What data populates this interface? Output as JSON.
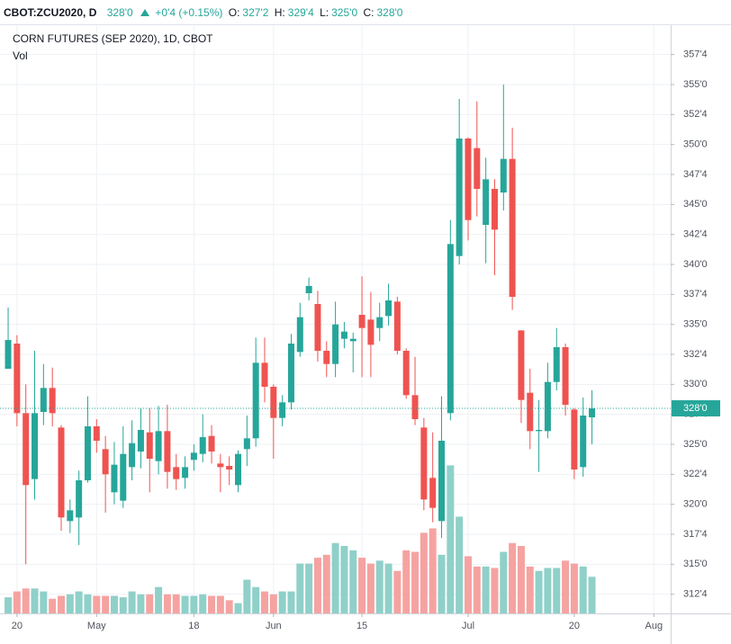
{
  "header": {
    "symbol": "CBOT:ZCU2020, D",
    "last": "328'0",
    "change": "+0'4 (+0.15%)",
    "o_label": "O:",
    "o": "327'2",
    "h_label": "H:",
    "h": "329'4",
    "l_label": "L:",
    "l": "325'0",
    "c_label": "C:",
    "c": "328'0"
  },
  "chart_data": {
    "type": "candlestick",
    "title": "CORN FUTURES (SEP 2020), 1D, CBOT",
    "subtitle": "Vol",
    "up_color": "#26a69a",
    "down_color": "#ef5350",
    "volume_up_color": "#8fd0c9",
    "volume_down_color": "#f5a3a1",
    "grid": true,
    "x": [
      0,
      1,
      2,
      3,
      4,
      5,
      6,
      7,
      8,
      9,
      10,
      11,
      12,
      13,
      14,
      15,
      16,
      17,
      18,
      19,
      20,
      21,
      22,
      23,
      24,
      25,
      26,
      27,
      28,
      29,
      30,
      31,
      32,
      33,
      34,
      35,
      36,
      37,
      38,
      39,
      40,
      41,
      42,
      43,
      44,
      45,
      46,
      47,
      48,
      49,
      50,
      51,
      52,
      53,
      54,
      55,
      56,
      57,
      58,
      59,
      60,
      61,
      62,
      63,
      64,
      65,
      66
    ],
    "open": [
      331.3,
      333.4,
      327.6,
      322.1,
      327.7,
      329.7,
      326.4,
      318.6,
      318.9,
      322.0,
      326.5,
      324.6,
      321.0,
      320.3,
      323.1,
      324.4,
      326.0,
      323.6,
      326.1,
      323.1,
      322.2,
      323.7,
      324.2,
      325.7,
      323.4,
      323.2,
      321.6,
      324.6,
      325.5,
      331.8,
      329.8,
      327.2,
      328.5,
      332.7,
      337.6,
      336.7,
      332.8,
      331.7,
      333.8,
      333.6,
      335.8,
      335.4,
      334.7,
      335.7,
      336.9,
      332.8,
      329.1,
      326.4,
      322.2,
      318.6,
      327.6,
      340.7,
      350.5,
      349.7,
      343.3,
      346.3,
      346.0,
      348.8,
      334.5,
      329.3,
      326.1,
      326.1,
      330.2,
      333.1,
      327.9,
      323.1,
      327.25
    ],
    "high": [
      336.4,
      334.1,
      330.0,
      332.8,
      331.7,
      331.4,
      326.6,
      320.4,
      322.8,
      329.0,
      327.1,
      325.7,
      325.2,
      326.5,
      327.0,
      328.0,
      328.0,
      328.2,
      328.3,
      324.2,
      324.0,
      325.0,
      327.5,
      326.6,
      324.2,
      324.0,
      324.5,
      327.4,
      333.9,
      333.9,
      330.0,
      329.1,
      334.2,
      336.8,
      338.9,
      337.8,
      333.6,
      336.9,
      335.2,
      334.3,
      339.0,
      337.7,
      336.8,
      338.4,
      337.3,
      333.0,
      332.3,
      327.2,
      326.0,
      329.0,
      343.7,
      353.8,
      350.6,
      353.6,
      348.9,
      347.1,
      355.0,
      351.4,
      334.5,
      331.3,
      328.7,
      331.8,
      334.7,
      333.4,
      328.0,
      328.9,
      329.5
    ],
    "low": [
      331.3,
      326.5,
      315.0,
      320.4,
      326.6,
      326.5,
      317.8,
      317.6,
      316.6,
      321.8,
      324.3,
      319.3,
      320.0,
      319.7,
      322.0,
      323.0,
      321.0,
      322.5,
      321.3,
      321.2,
      321.3,
      322.8,
      323.5,
      323.4,
      321.0,
      321.6,
      321.0,
      323.2,
      324.8,
      328.5,
      323.8,
      326.5,
      327.9,
      332.3,
      337.0,
      331.9,
      330.6,
      330.6,
      333.0,
      331.0,
      330.6,
      330.6,
      333.6,
      334.9,
      332.5,
      328.8,
      326.6,
      319.5,
      318.5,
      317.2,
      327.0,
      340.0,
      342.0,
      344.0,
      340.1,
      339.1,
      344.5,
      336.2,
      326.8,
      324.6,
      322.7,
      325.5,
      329.5,
      327.4,
      322.1,
      322.3,
      325.0
    ],
    "close": [
      333.7,
      327.6,
      321.6,
      327.6,
      329.7,
      327.6,
      318.9,
      319.5,
      322.0,
      326.5,
      325.3,
      322.5,
      323.3,
      324.2,
      325.1,
      326.2,
      323.8,
      326.1,
      322.7,
      322.1,
      323.1,
      324.3,
      325.6,
      324.4,
      323.1,
      322.9,
      324.2,
      325.5,
      331.8,
      329.8,
      327.2,
      328.5,
      333.4,
      335.6,
      338.2,
      332.8,
      331.7,
      335.0,
      334.4,
      333.8,
      334.7,
      333.3,
      335.6,
      337.0,
      332.8,
      329.1,
      327.1,
      320.4,
      319.7,
      325.3,
      341.7,
      350.5,
      343.7,
      346.3,
      347.1,
      342.9,
      348.8,
      337.3,
      328.7,
      326.1,
      326.2,
      330.2,
      333.1,
      328.3,
      322.9,
      327.4,
      328.0
    ],
    "volume": [
      11,
      15,
      17,
      17,
      15,
      10,
      12,
      13,
      15,
      13,
      12,
      12,
      12,
      11,
      15,
      13,
      13,
      18,
      13,
      13,
      12,
      12,
      13,
      12,
      12,
      9,
      7,
      23,
      18,
      15,
      13,
      15,
      15,
      34,
      34,
      38,
      40,
      48,
      46,
      43,
      38,
      34,
      36,
      34,
      29,
      43,
      42,
      55,
      58,
      40,
      101,
      66,
      39,
      32,
      32,
      31,
      42,
      48,
      46,
      32,
      29,
      31,
      31,
      36,
      34,
      32,
      25
    ],
    "volume_ylim": [
      0,
      400
    ],
    "xlim": [
      -0.92,
      74.9
    ],
    "xticks": [
      {
        "value": 1,
        "label": "20"
      },
      {
        "value": 10,
        "label": "May"
      },
      {
        "value": 21,
        "label": "18"
      },
      {
        "value": 30,
        "label": "Jun"
      },
      {
        "value": 40,
        "label": "15"
      },
      {
        "value": 52,
        "label": "Jul"
      },
      {
        "value": 64,
        "label": "20"
      },
      {
        "value": 73,
        "label": "Aug"
      }
    ],
    "ylim": [
      310.9,
      359.8
    ],
    "yticks": [
      {
        "value": 312.5,
        "label": "312'4"
      },
      {
        "value": 315,
        "label": "315'0"
      },
      {
        "value": 317.5,
        "label": "317'4"
      },
      {
        "value": 320,
        "label": "320'0"
      },
      {
        "value": 322.5,
        "label": "322'4"
      },
      {
        "value": 325,
        "label": "325'0"
      },
      {
        "value": 327.5,
        "label": "327'4"
      },
      {
        "value": 330,
        "label": "330'0"
      },
      {
        "value": 332.5,
        "label": "332'4"
      },
      {
        "value": 335,
        "label": "335'0"
      },
      {
        "value": 337.5,
        "label": "337'4"
      },
      {
        "value": 340,
        "label": "340'0"
      },
      {
        "value": 342.5,
        "label": "342'4"
      },
      {
        "value": 345,
        "label": "345'0"
      },
      {
        "value": 347.5,
        "label": "347'4"
      },
      {
        "value": 350,
        "label": "350'0"
      },
      {
        "value": 352.5,
        "label": "352'4"
      },
      {
        "value": 355,
        "label": "355'0"
      },
      {
        "value": 357.5,
        "label": "357'4"
      }
    ],
    "last_price": {
      "value": 328,
      "label": "328'0"
    }
  }
}
